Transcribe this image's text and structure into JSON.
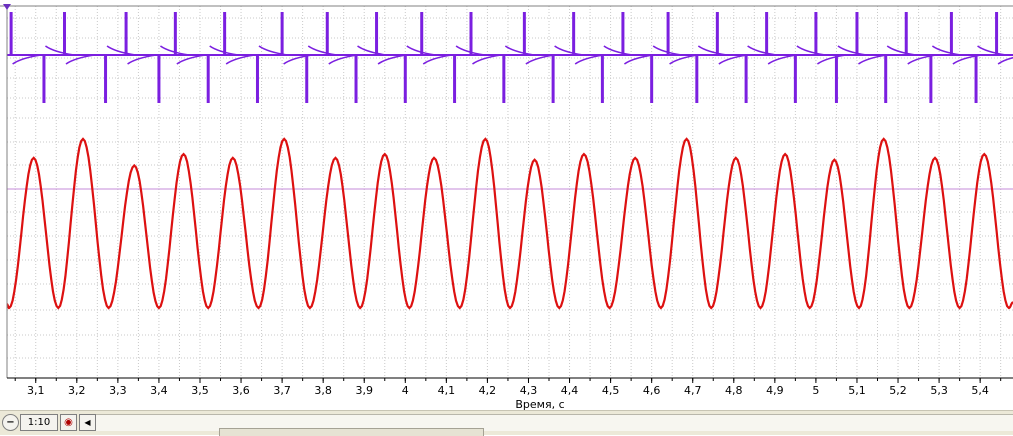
{
  "chart_data": {
    "type": "line",
    "xlabel": "Время, с",
    "xlim": [
      3.03,
      5.48
    ],
    "x_ticks": [
      "3,1",
      "3,2",
      "3,3",
      "3,4",
      "3,5",
      "3,6",
      "3,7",
      "3,8",
      "3,9",
      "4",
      "4,1",
      "4,2",
      "4,3",
      "4,4",
      "4,5",
      "4,6",
      "4,7",
      "4,8",
      "4,9",
      "5",
      "5,1",
      "5,2",
      "5,3",
      "5,4"
    ],
    "grid": true,
    "series": [
      {
        "color": "#7b1fe0",
        "description": "pulse trace with spikes around a flat baseline",
        "baseline": 0.0,
        "spike_times": [
          3.04,
          3.12,
          3.17,
          3.27,
          3.32,
          3.4,
          3.44,
          3.52,
          3.56,
          3.64,
          3.7,
          3.76,
          3.81,
          3.88,
          3.93,
          4.0,
          4.04,
          4.12,
          4.16,
          4.24,
          4.29,
          4.36,
          4.41,
          4.48,
          4.53,
          4.6,
          4.64,
          4.71,
          4.76,
          4.83,
          4.88,
          4.95,
          5.0,
          5.05,
          5.1,
          5.17,
          5.22,
          5.28,
          5.33,
          5.39,
          5.44
        ]
      },
      {
        "color": "#dd1111",
        "description": "periodic oscillating waveform",
        "peaks": [
          {
            "x": 3.095,
            "y": 0.79
          },
          {
            "x": 3.215,
            "y": 0.89
          },
          {
            "x": 3.34,
            "y": 0.75
          },
          {
            "x": 3.46,
            "y": 0.81
          },
          {
            "x": 3.58,
            "y": 0.79
          },
          {
            "x": 3.705,
            "y": 0.89
          },
          {
            "x": 3.83,
            "y": 0.79
          },
          {
            "x": 3.95,
            "y": 0.81
          },
          {
            "x": 4.07,
            "y": 0.79
          },
          {
            "x": 4.195,
            "y": 0.89
          },
          {
            "x": 4.315,
            "y": 0.78
          },
          {
            "x": 4.435,
            "y": 0.81
          },
          {
            "x": 4.56,
            "y": 0.79
          },
          {
            "x": 4.685,
            "y": 0.89
          },
          {
            "x": 4.805,
            "y": 0.79
          },
          {
            "x": 4.925,
            "y": 0.81
          },
          {
            "x": 5.045,
            "y": 0.78
          },
          {
            "x": 5.165,
            "y": 0.89
          },
          {
            "x": 5.29,
            "y": 0.79
          },
          {
            "x": 5.41,
            "y": 0.81
          }
        ],
        "trough": 0.0
      }
    ]
  },
  "statusbar": {
    "zoom_out_icon": "zoom-out-icon",
    "zoom_level": "1:10",
    "record_icon": "record-icon",
    "scroll_left_icon": "triangle-left-icon"
  }
}
